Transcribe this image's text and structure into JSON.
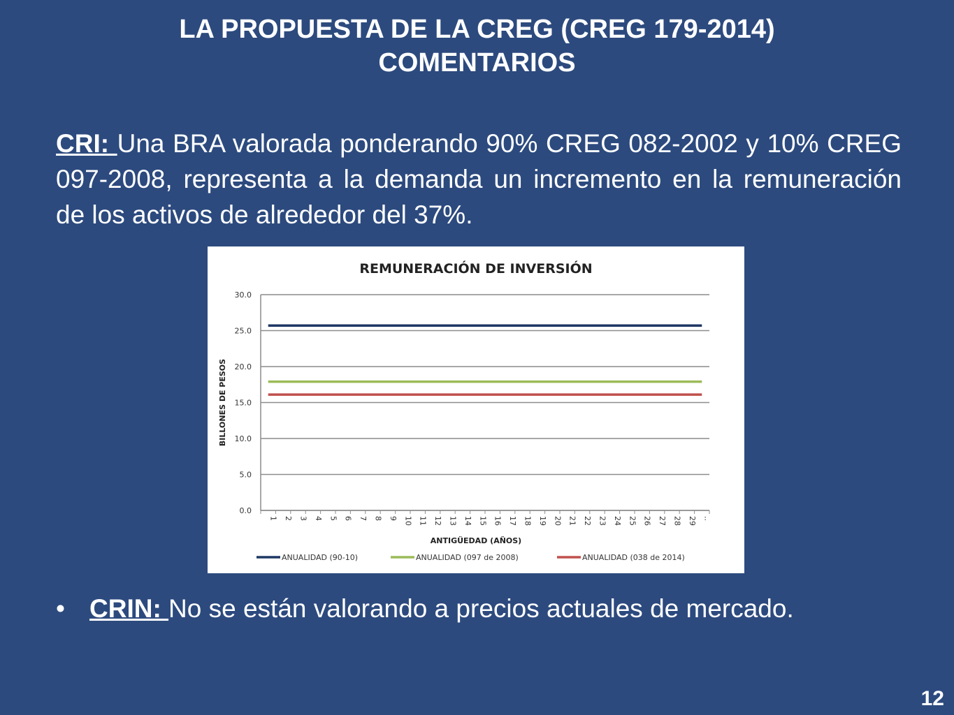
{
  "slide": {
    "title_line1": "LA PROPUESTA DE LA CREG (CREG 179-2014)",
    "title_line2": "COMENTARIOS",
    "cri_label": "CRI: ",
    "cri_text": "Una BRA valorada ponderando 90% CREG 082-2002 y 10% CREG 097-2008, representa a la demanda un incremento en la remuneración de los activos de alrededor del 37%.",
    "bullet_char": "•",
    "crin_label": "CRIN: ",
    "crin_text": "No se están valorando a precios actuales de mercado.",
    "page_number": "12"
  },
  "chart_data": {
    "type": "line",
    "title": "REMUNERACIÓN DE INVERSIÓN",
    "xlabel": "ANTIGÜEDAD (AÑOS)",
    "ylabel": "BILLONES DE PESOS",
    "ylim": [
      0,
      30
    ],
    "yticks": [
      "0.0",
      "5.0",
      "10.0",
      "15.0",
      "20.0",
      "25.0",
      "30.0"
    ],
    "x": [
      "1",
      "2",
      "3",
      "4",
      "5",
      "6",
      "7",
      "8",
      "9",
      "10",
      "11",
      "12",
      "13",
      "14",
      "15",
      "16",
      "17",
      "18",
      "19",
      "20",
      "21",
      "22",
      "23",
      "24",
      "25",
      "26",
      "27",
      "28",
      "29",
      "30"
    ],
    "grid": true,
    "legend_position": "bottom",
    "series": [
      {
        "name": "ANUALIDAD (90-10)",
        "color": "#1f3864",
        "values": [
          25.7,
          25.7,
          25.7,
          25.7,
          25.7,
          25.7,
          25.7,
          25.7,
          25.7,
          25.7,
          25.7,
          25.7,
          25.7,
          25.7,
          25.7,
          25.7,
          25.7,
          25.7,
          25.7,
          25.7,
          25.7,
          25.7,
          25.7,
          25.7,
          25.7,
          25.7,
          25.7,
          25.7,
          25.7,
          25.7
        ]
      },
      {
        "name": "ANUALIDAD (097 de 2008)",
        "color": "#9bbb59",
        "values": [
          17.9,
          17.9,
          17.9,
          17.9,
          17.9,
          17.9,
          17.9,
          17.9,
          17.9,
          17.9,
          17.9,
          17.9,
          17.9,
          17.9,
          17.9,
          17.9,
          17.9,
          17.9,
          17.9,
          17.9,
          17.9,
          17.9,
          17.9,
          17.9,
          17.9,
          17.9,
          17.9,
          17.9,
          17.9,
          17.9
        ]
      },
      {
        "name": "ANUALIDAD (038 de 2014)",
        "color": "#c0504d",
        "values": [
          16.1,
          16.1,
          16.1,
          16.1,
          16.1,
          16.1,
          16.1,
          16.1,
          16.1,
          16.1,
          16.1,
          16.1,
          16.1,
          16.1,
          16.1,
          16.1,
          16.1,
          16.1,
          16.1,
          16.1,
          16.1,
          16.1,
          16.1,
          16.1,
          16.1,
          16.1,
          16.1,
          16.1,
          16.1,
          16.1
        ]
      }
    ]
  }
}
